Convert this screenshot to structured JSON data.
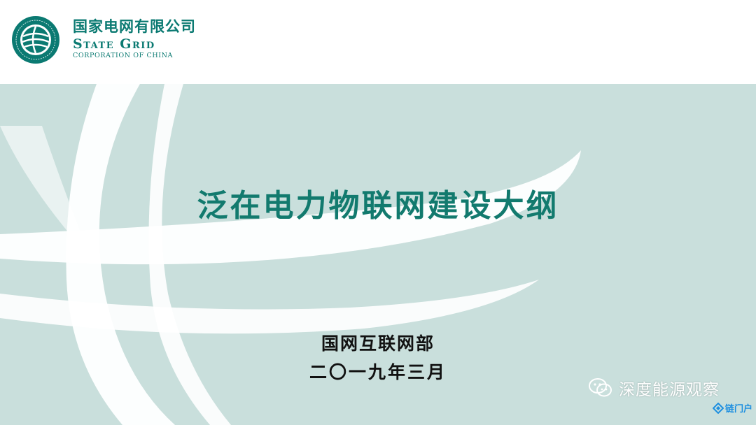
{
  "logo": {
    "cn_name": "国家电网有限公司",
    "en_name_line1": "State Grid",
    "en_name_line2": "CORPORATION OF CHINA",
    "emblem_icon": "state-grid-globe-emblem"
  },
  "slide": {
    "title": "泛在电力物联网建设大纲",
    "organization": "国网互联网部",
    "date": "二〇一九年三月"
  },
  "watermark": {
    "wechat_account": "深度能源观察",
    "wechat_icon": "wechat-icon",
    "site_label": "链门户",
    "site_icon": "diamond-logo-icon"
  },
  "colors": {
    "brand_teal": "#0b7a72",
    "title_teal": "#127a6e",
    "panel_bg": "#c9dfdc",
    "swoosh": "#ffffff"
  }
}
